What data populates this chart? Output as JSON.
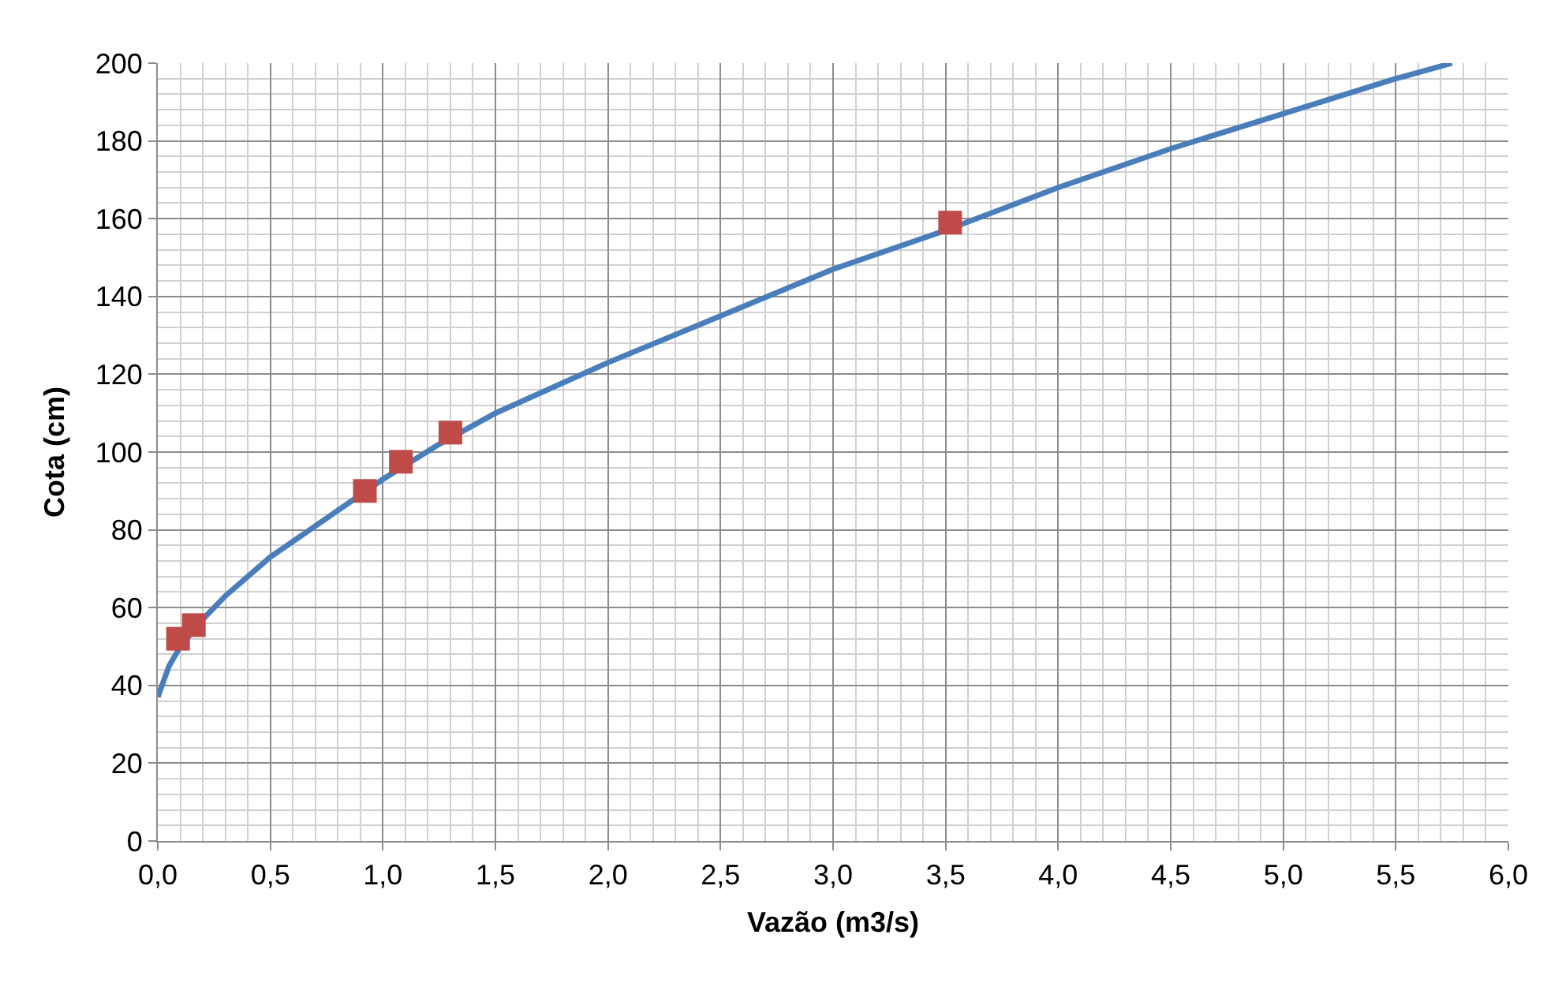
{
  "chart_data": {
    "type": "line",
    "xlabel": "Vazão (m3/s)",
    "ylabel": "Cota (cm)",
    "series": [
      {
        "color": "#4a7ebb",
        "marker": "none",
        "line_style": "solid",
        "x": [
          0,
          0.05,
          0.1,
          0.2,
          0.3,
          0.5,
          0.75,
          1.0,
          1.25,
          1.5,
          2.0,
          2.5,
          3.0,
          3.5,
          4.0,
          4.5,
          5.0,
          5.5,
          5.75
        ],
        "values": [
          37,
          45,
          50,
          57,
          63,
          73,
          83,
          93,
          102,
          110,
          123,
          135,
          147,
          157,
          168,
          178,
          187,
          196,
          200
        ]
      },
      {
        "type": "scatter",
        "color": "#be4b48",
        "marker": "square",
        "x": [
          0.09,
          0.16,
          0.92,
          1.08,
          1.3,
          3.52
        ],
        "values": [
          52,
          55.5,
          90,
          97.5,
          105,
          159
        ]
      }
    ],
    "xlim": [
      0,
      6
    ],
    "ylim": [
      0,
      200
    ],
    "xticks": [
      {
        "value": 0,
        "label": "0,0"
      },
      {
        "value": 0.5,
        "label": "0,5"
      },
      {
        "value": 1,
        "label": "1,0"
      },
      {
        "value": 1.5,
        "label": "1,5"
      },
      {
        "value": 2,
        "label": "2,0"
      },
      {
        "value": 2.5,
        "label": "2,5"
      },
      {
        "value": 3,
        "label": "3,0"
      },
      {
        "value": 3.5,
        "label": "3,5"
      },
      {
        "value": 4,
        "label": "4,0"
      },
      {
        "value": 4.5,
        "label": "4,5"
      },
      {
        "value": 5,
        "label": "5,0"
      },
      {
        "value": 5.5,
        "label": "5,5"
      },
      {
        "value": 6,
        "label": "6,0"
      },
      {
        "value": 0.1,
        "label": null
      },
      {
        "value": 0.2,
        "label": null
      },
      {
        "value": 0.3,
        "label": null
      },
      {
        "value": 0.4,
        "label": null
      },
      {
        "value": 0.6,
        "label": null
      },
      {
        "value": 0.7,
        "label": null
      },
      {
        "value": 0.8,
        "label": null
      },
      {
        "value": 0.9,
        "label": null
      },
      {
        "value": 1.1,
        "label": null
      },
      {
        "value": 1.2,
        "label": null
      },
      {
        "value": 1.3,
        "label": null
      },
      {
        "value": 1.4,
        "label": null
      },
      {
        "value": 1.6,
        "label": null
      },
      {
        "value": 1.7,
        "label": null
      },
      {
        "value": 1.8,
        "label": null
      },
      {
        "value": 1.9,
        "label": null
      },
      {
        "value": 2.1,
        "label": null
      },
      {
        "value": 2.2,
        "label": null
      },
      {
        "value": 2.3,
        "label": null
      },
      {
        "value": 2.4,
        "label": null
      },
      {
        "value": 2.6,
        "label": null
      },
      {
        "value": 2.7,
        "label": null
      },
      {
        "value": 2.8,
        "label": null
      },
      {
        "value": 2.9,
        "label": null
      },
      {
        "value": 3.1,
        "label": null
      },
      {
        "value": 3.2,
        "label": null
      },
      {
        "value": 3.3,
        "label": null
      },
      {
        "value": 3.4,
        "label": null
      },
      {
        "value": 3.6,
        "label": null
      },
      {
        "value": 3.7,
        "label": null
      },
      {
        "value": 3.8,
        "label": null
      },
      {
        "value": 3.9,
        "label": null
      },
      {
        "value": 4.1,
        "label": null
      },
      {
        "value": 4.2,
        "label": null
      },
      {
        "value": 4.3,
        "label": null
      },
      {
        "value": 4.4,
        "label": null
      },
      {
        "value": 4.6,
        "label": null
      },
      {
        "value": 4.7,
        "label": null
      },
      {
        "value": 4.8,
        "label": null
      },
      {
        "value": 4.9,
        "label": null
      },
      {
        "value": 5.1,
        "label": null
      },
      {
        "value": 5.2,
        "label": null
      },
      {
        "value": 5.3,
        "label": null
      },
      {
        "value": 5.4,
        "label": null
      },
      {
        "value": 5.6,
        "label": null
      },
      {
        "value": 5.7,
        "label": null
      },
      {
        "value": 5.8,
        "label": null
      },
      {
        "value": 5.9,
        "label": null
      }
    ],
    "yticks": [
      0,
      20,
      40,
      60,
      80,
      100,
      120,
      140,
      160,
      180,
      200,
      {
        "value": 4,
        "label": null
      },
      {
        "value": 8,
        "label": null
      },
      {
        "value": 12,
        "label": null
      },
      {
        "value": 16,
        "label": null
      },
      {
        "value": 24,
        "label": null
      },
      {
        "value": 28,
        "label": null
      },
      {
        "value": 32,
        "label": null
      },
      {
        "value": 36,
        "label": null
      },
      {
        "value": 44,
        "label": null
      },
      {
        "value": 48,
        "label": null
      },
      {
        "value": 52,
        "label": null
      },
      {
        "value": 56,
        "label": null
      },
      {
        "value": 64,
        "label": null
      },
      {
        "value": 68,
        "label": null
      },
      {
        "value": 72,
        "label": null
      },
      {
        "value": 76,
        "label": null
      },
      {
        "value": 84,
        "label": null
      },
      {
        "value": 88,
        "label": null
      },
      {
        "value": 92,
        "label": null
      },
      {
        "value": 96,
        "label": null
      },
      {
        "value": 104,
        "label": null
      },
      {
        "value": 108,
        "label": null
      },
      {
        "value": 112,
        "label": null
      },
      {
        "value": 116,
        "label": null
      },
      {
        "value": 124,
        "label": null
      },
      {
        "value": 128,
        "label": null
      },
      {
        "value": 132,
        "label": null
      },
      {
        "value": 136,
        "label": null
      },
      {
        "value": 144,
        "label": null
      },
      {
        "value": 148,
        "label": null
      },
      {
        "value": 152,
        "label": null
      },
      {
        "value": 156,
        "label": null
      },
      {
        "value": 164,
        "label": null
      },
      {
        "value": 168,
        "label": null
      },
      {
        "value": 172,
        "label": null
      },
      {
        "value": 176,
        "label": null
      },
      {
        "value": 184,
        "label": null
      },
      {
        "value": 188,
        "label": null
      },
      {
        "value": 192,
        "label": null
      },
      {
        "value": 196,
        "label": null
      }
    ],
    "grid": true
  }
}
